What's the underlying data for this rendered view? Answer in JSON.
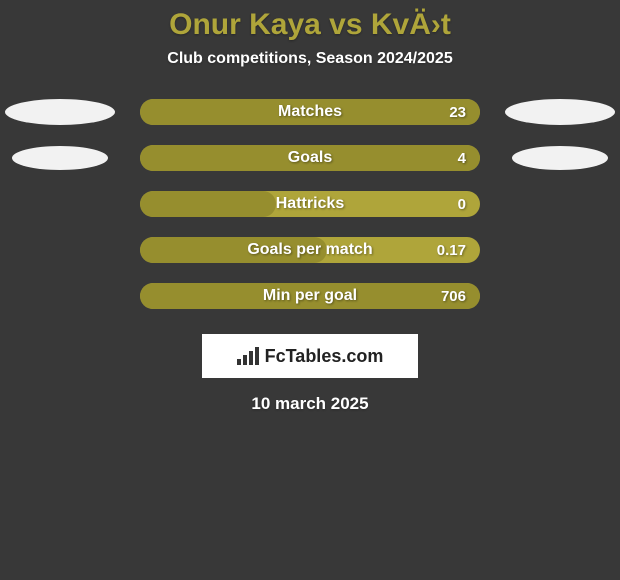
{
  "background_color": "#383838",
  "title": {
    "text": "Onur Kaya vs KvÄ›t",
    "color": "#afa53a",
    "fontsize": 30
  },
  "subtitle": {
    "text": "Club competitions, Season 2024/2025",
    "color": "#ffffff",
    "fontsize": 16
  },
  "bar_track_color": "#afa53a",
  "bar_fill_color": "#968e2e",
  "label_color": "#ffffff",
  "label_fontsize": 16,
  "value_color": "#ffffff",
  "value_fontsize": 15,
  "ellipse_color": "#f2f2f2",
  "rows": [
    {
      "label": "Matches",
      "value": "23",
      "fill_pct": 100,
      "left_ellipse": true,
      "right_ellipse": true,
      "left_w": 110,
      "left_h": 26,
      "right_w": 110,
      "right_h": 26
    },
    {
      "label": "Goals",
      "value": "4",
      "fill_pct": 100,
      "left_ellipse": true,
      "right_ellipse": true,
      "left_w": 96,
      "left_h": 24,
      "right_w": 96,
      "right_h": 24
    },
    {
      "label": "Hattricks",
      "value": "0",
      "fill_pct": 40,
      "left_ellipse": false,
      "right_ellipse": false
    },
    {
      "label": "Goals per match",
      "value": "0.17",
      "fill_pct": 55,
      "left_ellipse": false,
      "right_ellipse": false
    },
    {
      "label": "Min per goal",
      "value": "706",
      "fill_pct": 100,
      "left_ellipse": false,
      "right_ellipse": false
    }
  ],
  "logo": {
    "text": "FcTables.com",
    "icon_color": "#333333"
  },
  "footer": {
    "text": "10 march 2025",
    "color": "#ffffff",
    "fontsize": 17
  }
}
